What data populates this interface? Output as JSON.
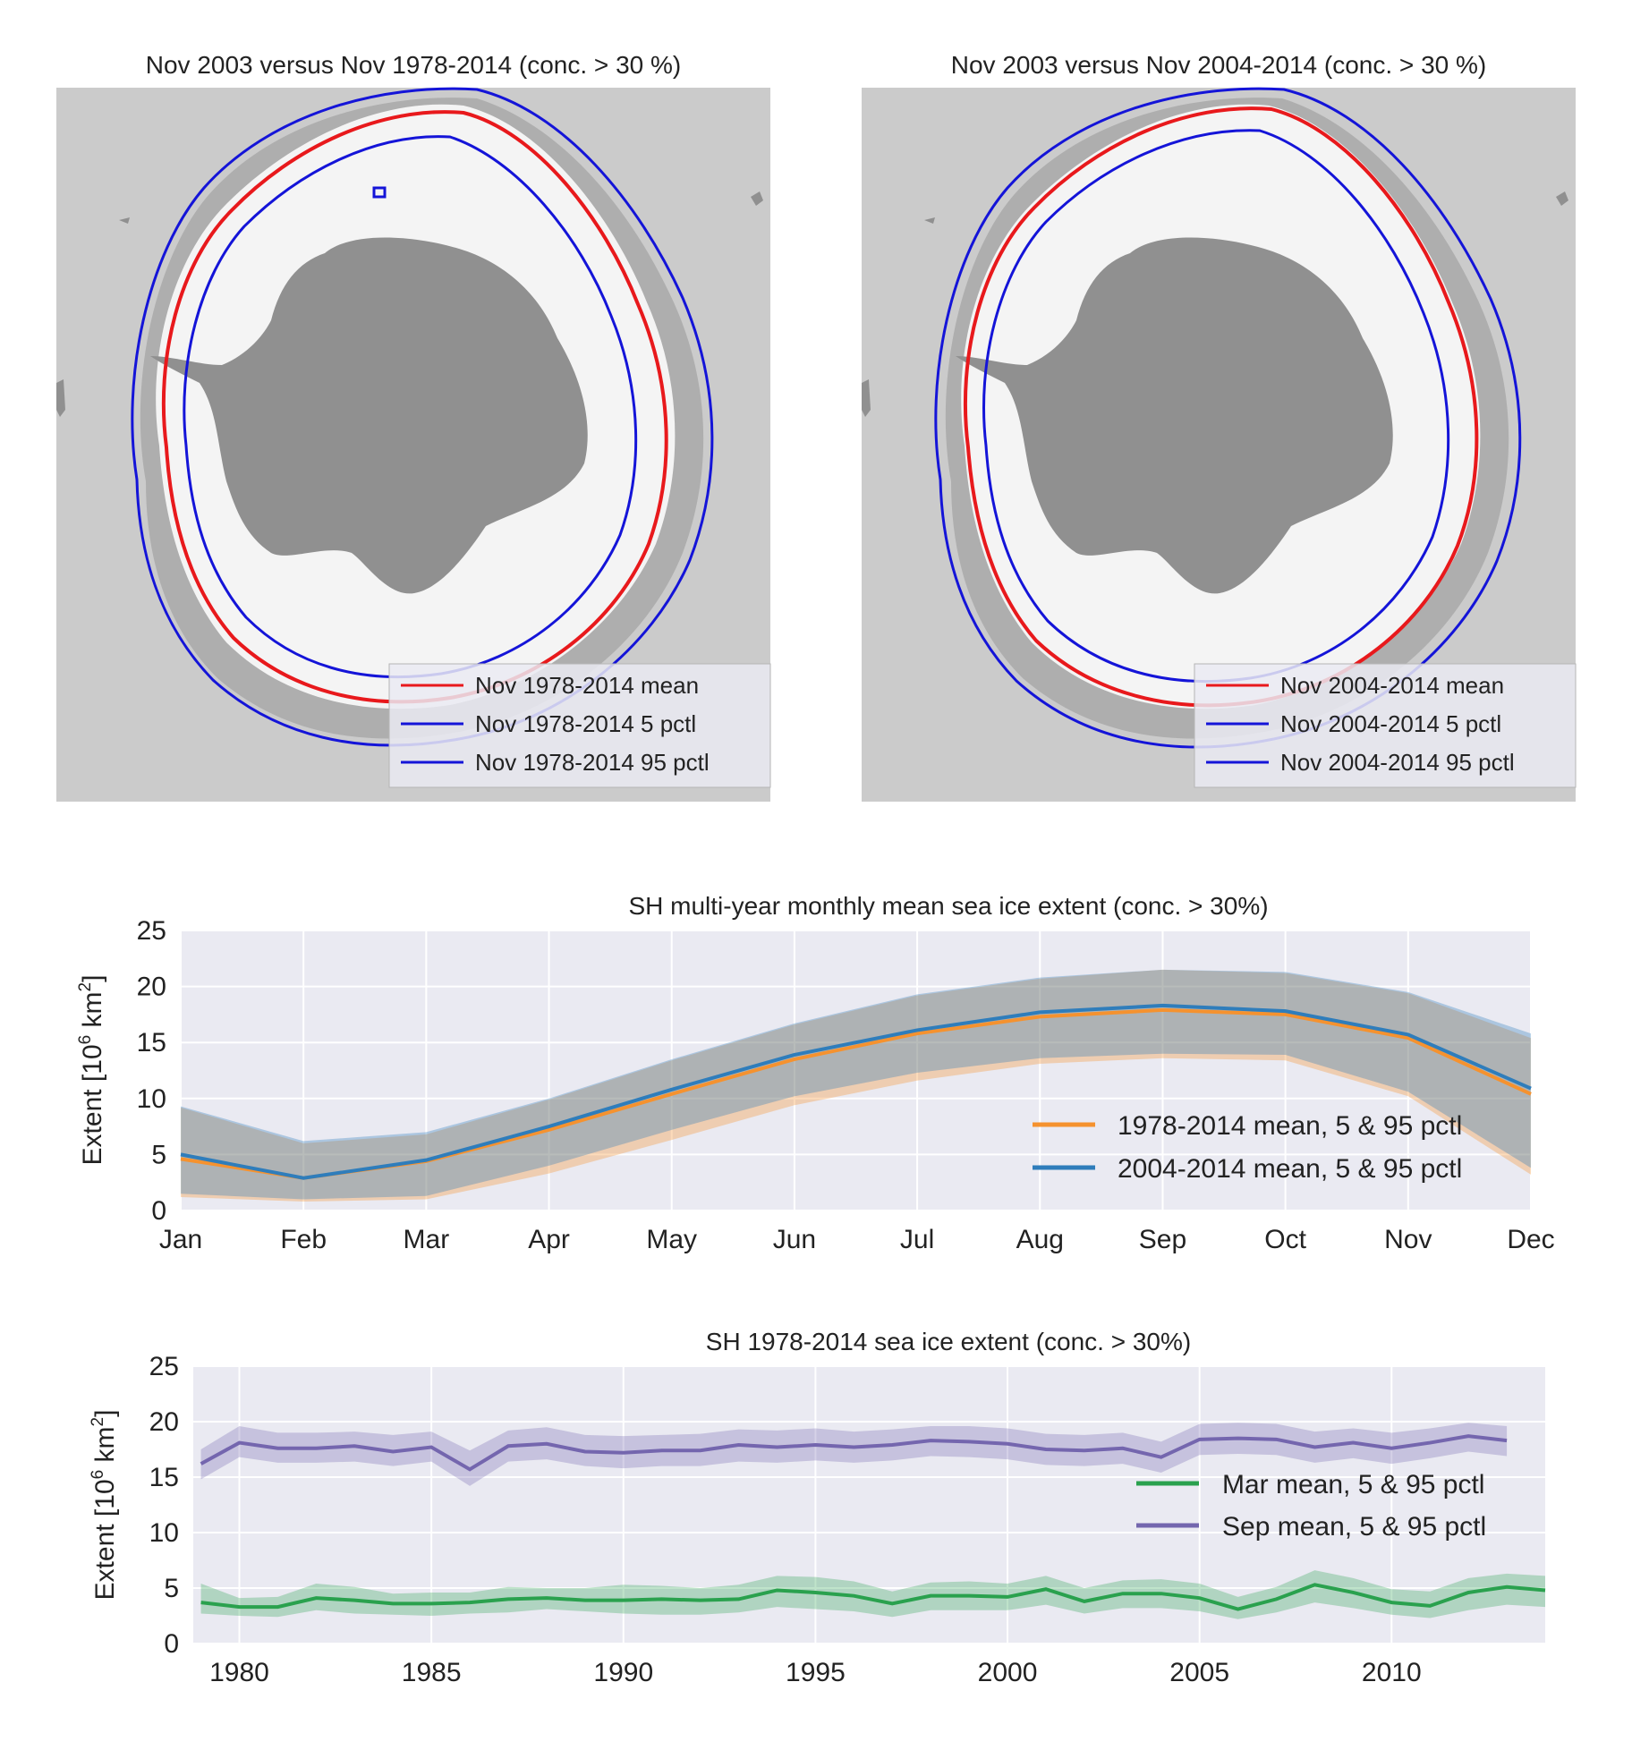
{
  "colors": {
    "map_background": "#cbcbcb",
    "land": "#909090",
    "ice": "#f4f4f4",
    "ice_variability": "#aeaeae",
    "mean_line": "#e8191c",
    "pctl_line": "#1414d8",
    "panel_background": "#eaeaf2",
    "grid": "#ffffff",
    "orange": "#f5922f",
    "steelblue": "#2f7dbb",
    "band_overlap": "#a7a8a3",
    "green": "#2aa14e",
    "purple": "#7466ae"
  },
  "maps": [
    {
      "title": "Nov 2003 versus Nov 1978-2014 (conc. > 30 %)",
      "legend": [
        "Nov 1978-2014 mean",
        "Nov 1978-2014 5 pctl",
        "Nov 1978-2014 95 pctl"
      ]
    },
    {
      "title": "Nov 2003 versus Nov 2004-2014 (conc. > 30 %)",
      "legend": [
        "Nov 2004-2014 mean",
        "Nov 2004-2014 5 pctl",
        "Nov 2004-2014 95 pctl"
      ]
    }
  ],
  "chart_data": [
    {
      "type": "line",
      "title": "SH multi-year monthly mean sea ice extent (conc. > 30%)",
      "ylabel": "Extent [10^6 km^2]",
      "ylim": [
        0,
        25
      ],
      "yticks": [
        0,
        5,
        10,
        15,
        20,
        25
      ],
      "grid": true,
      "legend_position": "lower-right",
      "categories": [
        "Jan",
        "Feb",
        "Mar",
        "Apr",
        "May",
        "Jun",
        "Jul",
        "Aug",
        "Sep",
        "Oct",
        "Nov",
        "Dec"
      ],
      "series": [
        {
          "name": "1978-2014 mean, 5 & 95 pctl",
          "color": "#f5922f",
          "mean": [
            4.6,
            2.9,
            4.4,
            7.2,
            10.4,
            13.5,
            15.8,
            17.3,
            17.9,
            17.5,
            15.4,
            10.4
          ],
          "p5": [
            1.2,
            0.8,
            1.0,
            3.3,
            6.3,
            9.4,
            11.6,
            13.1,
            13.6,
            13.4,
            10.2,
            3.2
          ],
          "p95": [
            9.2,
            6.0,
            6.8,
            9.9,
            13.4,
            16.6,
            19.2,
            20.7,
            21.5,
            21.2,
            19.4,
            15.4
          ]
        },
        {
          "name": "2004-2014 mean, 5 & 95 pctl",
          "color": "#2f7dbb",
          "mean": [
            5.0,
            2.9,
            4.5,
            7.5,
            10.8,
            13.9,
            16.1,
            17.7,
            18.3,
            17.8,
            15.7,
            10.9
          ],
          "p5": [
            1.5,
            1.0,
            1.3,
            4.0,
            7.2,
            10.2,
            12.3,
            13.6,
            14.0,
            13.9,
            10.6,
            3.8
          ],
          "p95": [
            9.3,
            6.2,
            7.0,
            10.0,
            13.5,
            16.7,
            19.3,
            20.8,
            21.5,
            21.3,
            19.5,
            15.8
          ]
        }
      ]
    },
    {
      "type": "line",
      "title": "SH 1978-2014 sea ice extent (conc. > 30%)",
      "ylabel": "Extent [10^6 km^2]",
      "ylim": [
        0,
        25
      ],
      "xlim": [
        1978.8,
        2014
      ],
      "yticks": [
        0,
        5,
        10,
        15,
        20,
        25
      ],
      "xticks": [
        1980,
        1985,
        1990,
        1995,
        2000,
        2005,
        2010
      ],
      "grid": true,
      "legend_position": "right",
      "series": [
        {
          "name": "Mar mean, 5 & 95 pctl",
          "color": "#2aa14e",
          "x": [
            1979,
            1980,
            1981,
            1982,
            1983,
            1984,
            1985,
            1986,
            1987,
            1988,
            1989,
            1990,
            1991,
            1992,
            1993,
            1994,
            1995,
            1996,
            1997,
            1998,
            1999,
            2000,
            2001,
            2002,
            2003,
            2004,
            2005,
            2006,
            2007,
            2008,
            2009,
            2010,
            2011,
            2012,
            2013,
            2014
          ],
          "mean": [
            3.7,
            3.3,
            3.3,
            4.1,
            3.9,
            3.6,
            3.6,
            3.7,
            4.0,
            4.1,
            3.9,
            3.9,
            4.0,
            3.9,
            4.0,
            4.8,
            4.6,
            4.3,
            3.6,
            4.3,
            4.3,
            4.2,
            4.9,
            3.8,
            4.5,
            4.5,
            4.1,
            3.1,
            4.0,
            5.3,
            4.6,
            3.7,
            3.4,
            4.6,
            5.1,
            4.8
          ],
          "p5": [
            2.7,
            2.5,
            2.4,
            3.0,
            2.7,
            2.6,
            2.5,
            2.7,
            2.8,
            3.1,
            2.9,
            2.7,
            2.6,
            2.6,
            2.8,
            3.3,
            3.1,
            2.9,
            2.4,
            3.0,
            3.0,
            3.0,
            3.5,
            2.7,
            3.2,
            3.2,
            2.9,
            2.2,
            2.8,
            3.7,
            3.2,
            2.6,
            2.3,
            3.0,
            3.5,
            3.3
          ],
          "p95": [
            5.4,
            4.1,
            4.2,
            5.4,
            5.1,
            4.5,
            4.6,
            4.6,
            5.1,
            5.0,
            5.0,
            5.3,
            5.2,
            5.0,
            5.3,
            6.1,
            6.0,
            5.6,
            4.7,
            5.5,
            5.6,
            5.4,
            6.1,
            5.0,
            5.7,
            5.8,
            5.4,
            4.2,
            5.1,
            6.6,
            5.9,
            4.9,
            4.7,
            5.9,
            6.3,
            6.1
          ]
        },
        {
          "name": "Sep mean, 5 & 95 pctl",
          "color": "#7466ae",
          "x": [
            1979,
            1980,
            1981,
            1982,
            1983,
            1984,
            1985,
            1986,
            1987,
            1988,
            1989,
            1990,
            1991,
            1992,
            1993,
            1994,
            1995,
            1996,
            1997,
            1998,
            1999,
            2000,
            2001,
            2002,
            2003,
            2004,
            2005,
            2006,
            2007,
            2008,
            2009,
            2010,
            2011,
            2012,
            2013
          ],
          "mean": [
            16.2,
            18.1,
            17.6,
            17.6,
            17.8,
            17.3,
            17.7,
            15.7,
            17.8,
            18.0,
            17.3,
            17.2,
            17.4,
            17.4,
            17.9,
            17.7,
            17.9,
            17.7,
            17.9,
            18.3,
            18.2,
            18.0,
            17.5,
            17.4,
            17.6,
            16.8,
            18.4,
            18.5,
            18.4,
            17.7,
            18.1,
            17.6,
            18.1,
            18.7,
            18.3
          ],
          "p5": [
            14.8,
            16.8,
            16.3,
            16.3,
            16.4,
            16.0,
            16.4,
            14.2,
            16.4,
            16.6,
            16.0,
            15.8,
            16.0,
            16.0,
            16.4,
            16.3,
            16.5,
            16.3,
            16.5,
            16.9,
            16.8,
            16.6,
            16.1,
            16.0,
            16.2,
            15.4,
            17.0,
            17.1,
            17.0,
            16.3,
            16.7,
            16.2,
            16.7,
            17.3,
            16.9
          ],
          "p95": [
            17.5,
            19.6,
            19.0,
            19.0,
            19.1,
            18.8,
            19.1,
            17.4,
            19.2,
            19.5,
            18.8,
            18.7,
            18.8,
            18.9,
            19.3,
            19.2,
            19.4,
            19.1,
            19.3,
            19.6,
            19.6,
            19.4,
            18.9,
            18.8,
            19.0,
            18.2,
            19.8,
            19.9,
            19.8,
            19.1,
            19.4,
            19.0,
            19.4,
            19.9,
            19.6
          ]
        }
      ]
    }
  ]
}
